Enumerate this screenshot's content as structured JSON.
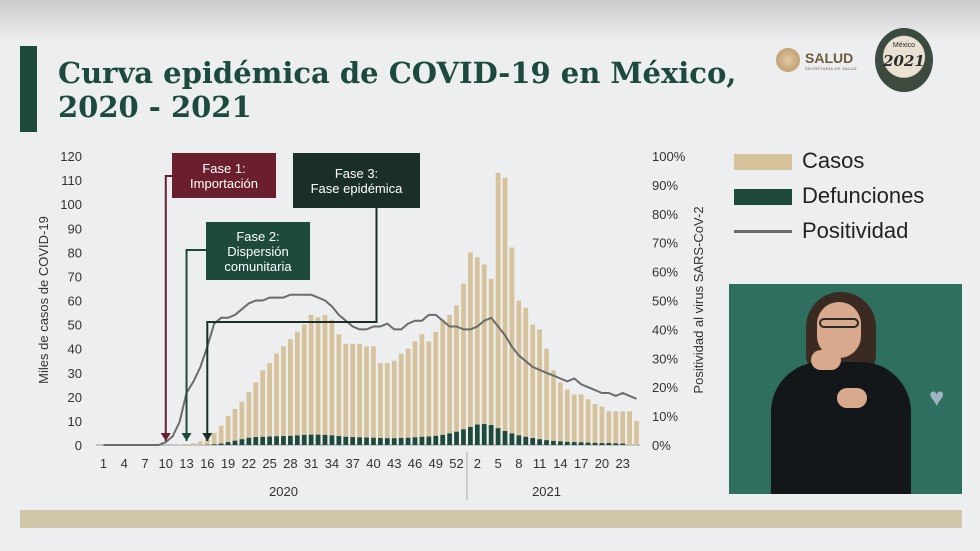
{
  "header": {
    "title_line1": "Curva epidémica de COVID-19 en México,",
    "title_line2": "2020 - 2021",
    "salud_logo_text": "SALUD",
    "salud_logo_subtext": "SECRETARÍA DE SALUD",
    "emblem_year": "2021",
    "emblem_text": "México"
  },
  "colors": {
    "title": "#1d4a3e",
    "cases": "#d6c39b",
    "deaths": "#1e4a3e",
    "positivity": "#6b6b6b",
    "phase1": "#6b1f2e",
    "phase2": "#1e4a3e",
    "phase3": "#1b2f2a"
  },
  "chart_data": {
    "type": "bar",
    "ylabel": "Miles de casos de COVID-19",
    "y2label": "Positividad al virus SARS-CoV-2",
    "ylim": [
      0,
      120
    ],
    "y2lim": [
      0,
      100
    ],
    "yticks": [
      "0",
      "10",
      "20",
      "30",
      "40",
      "50",
      "60",
      "70",
      "80",
      "90",
      "100",
      "110",
      "120"
    ],
    "y2ticks": [
      "0%",
      "10%",
      "20%",
      "30%",
      "40%",
      "50%",
      "60%",
      "70%",
      "80%",
      "90%",
      "100%"
    ],
    "xticks": [
      {
        "week_index": 0,
        "label": "1"
      },
      {
        "week_index": 3,
        "label": "4"
      },
      {
        "week_index": 6,
        "label": "7"
      },
      {
        "week_index": 9,
        "label": "10"
      },
      {
        "week_index": 12,
        "label": "13"
      },
      {
        "week_index": 15,
        "label": "16"
      },
      {
        "week_index": 18,
        "label": "19"
      },
      {
        "week_index": 21,
        "label": "22"
      },
      {
        "week_index": 24,
        "label": "25"
      },
      {
        "week_index": 27,
        "label": "28"
      },
      {
        "week_index": 30,
        "label": "31"
      },
      {
        "week_index": 33,
        "label": "34"
      },
      {
        "week_index": 36,
        "label": "37"
      },
      {
        "week_index": 39,
        "label": "40"
      },
      {
        "week_index": 42,
        "label": "43"
      },
      {
        "week_index": 45,
        "label": "46"
      },
      {
        "week_index": 48,
        "label": "49"
      },
      {
        "week_index": 51,
        "label": "52"
      },
      {
        "week_index": 54,
        "label": "2"
      },
      {
        "week_index": 57,
        "label": "5"
      },
      {
        "week_index": 60,
        "label": "8"
      },
      {
        "week_index": 63,
        "label": "11"
      },
      {
        "week_index": 66,
        "label": "14"
      },
      {
        "week_index": 69,
        "label": "17"
      },
      {
        "week_index": 72,
        "label": "20"
      },
      {
        "week_index": 75,
        "label": "23"
      }
    ],
    "year_groups": [
      {
        "label": "2020",
        "first_week_index": 0,
        "last_week_index": 52
      },
      {
        "label": "2021",
        "first_week_index": 53,
        "last_week_index": 75
      }
    ],
    "series": [
      {
        "name": "Casos",
        "type": "bar",
        "values": [
          0,
          0,
          0,
          0,
          0,
          0,
          0,
          0,
          0,
          0,
          0.1,
          0.2,
          0.4,
          0.8,
          1.5,
          3,
          5,
          8,
          12,
          15,
          18,
          22,
          26,
          31,
          34,
          38,
          41,
          44,
          47,
          50,
          54,
          53,
          54,
          52,
          46,
          42,
          42,
          42,
          41,
          41,
          34,
          34,
          35,
          38,
          40,
          43,
          46,
          43,
          47,
          52,
          54,
          58,
          67,
          80,
          78,
          75,
          69,
          113,
          111,
          82,
          60,
          57,
          50,
          48,
          40,
          31,
          26,
          23,
          21,
          21,
          19,
          17,
          16,
          14,
          14,
          14,
          14,
          10
        ]
      },
      {
        "name": "Defunciones",
        "type": "bar",
        "values": [
          0,
          0,
          0,
          0,
          0,
          0,
          0,
          0,
          0,
          0,
          0,
          0,
          0,
          0,
          0,
          0.1,
          0.3,
          0.6,
          1.2,
          1.8,
          2.4,
          3,
          3.3,
          3.4,
          3.5,
          3.6,
          3.7,
          3.8,
          4,
          4.2,
          4.3,
          4.3,
          4.2,
          4,
          3.7,
          3.4,
          3.3,
          3.2,
          3.1,
          3,
          2.9,
          2.8,
          2.8,
          2.9,
          3,
          3.2,
          3.4,
          3.5,
          3.8,
          4.2,
          4.8,
          5.5,
          6.5,
          7.5,
          8.5,
          8.7,
          8.3,
          7,
          5.8,
          4.8,
          4,
          3.4,
          2.9,
          2.4,
          2,
          1.7,
          1.5,
          1.3,
          1.2,
          1.1,
          1,
          0.9,
          0.8,
          0.8,
          0.7,
          0.6
        ]
      },
      {
        "name": "Positividad",
        "type": "line",
        "values": [
          0,
          0,
          0,
          0,
          0,
          0,
          0,
          0,
          0,
          1,
          3,
          8,
          18,
          22,
          27,
          34,
          42,
          44,
          44,
          45,
          47,
          49,
          50,
          50,
          51,
          51,
          51,
          52,
          52,
          52,
          52,
          51,
          50,
          48,
          45,
          43,
          41,
          40,
          40,
          41,
          41,
          42,
          40,
          40,
          42,
          43,
          43,
          45,
          45,
          43,
          41,
          41,
          40,
          40,
          41,
          43,
          44,
          41,
          38,
          34,
          31,
          29,
          27,
          26,
          25,
          24,
          23,
          22,
          23,
          21,
          20,
          19,
          18,
          18,
          17,
          18,
          17,
          16
        ]
      }
    ],
    "annotations": [
      {
        "label_line1": "Fase 1:",
        "label_line2": "Importación",
        "week_index": 9
      },
      {
        "label_line1": "Fase 2:",
        "label_line2": "Dispersión",
        "label_line3": "comunitaria",
        "week_index": 12
      },
      {
        "label_line1": "Fase 3:",
        "label_line2": "Fase epidémica",
        "week_index": 15
      }
    ]
  },
  "interpreter": {
    "heart_icon": "heart-icon"
  }
}
